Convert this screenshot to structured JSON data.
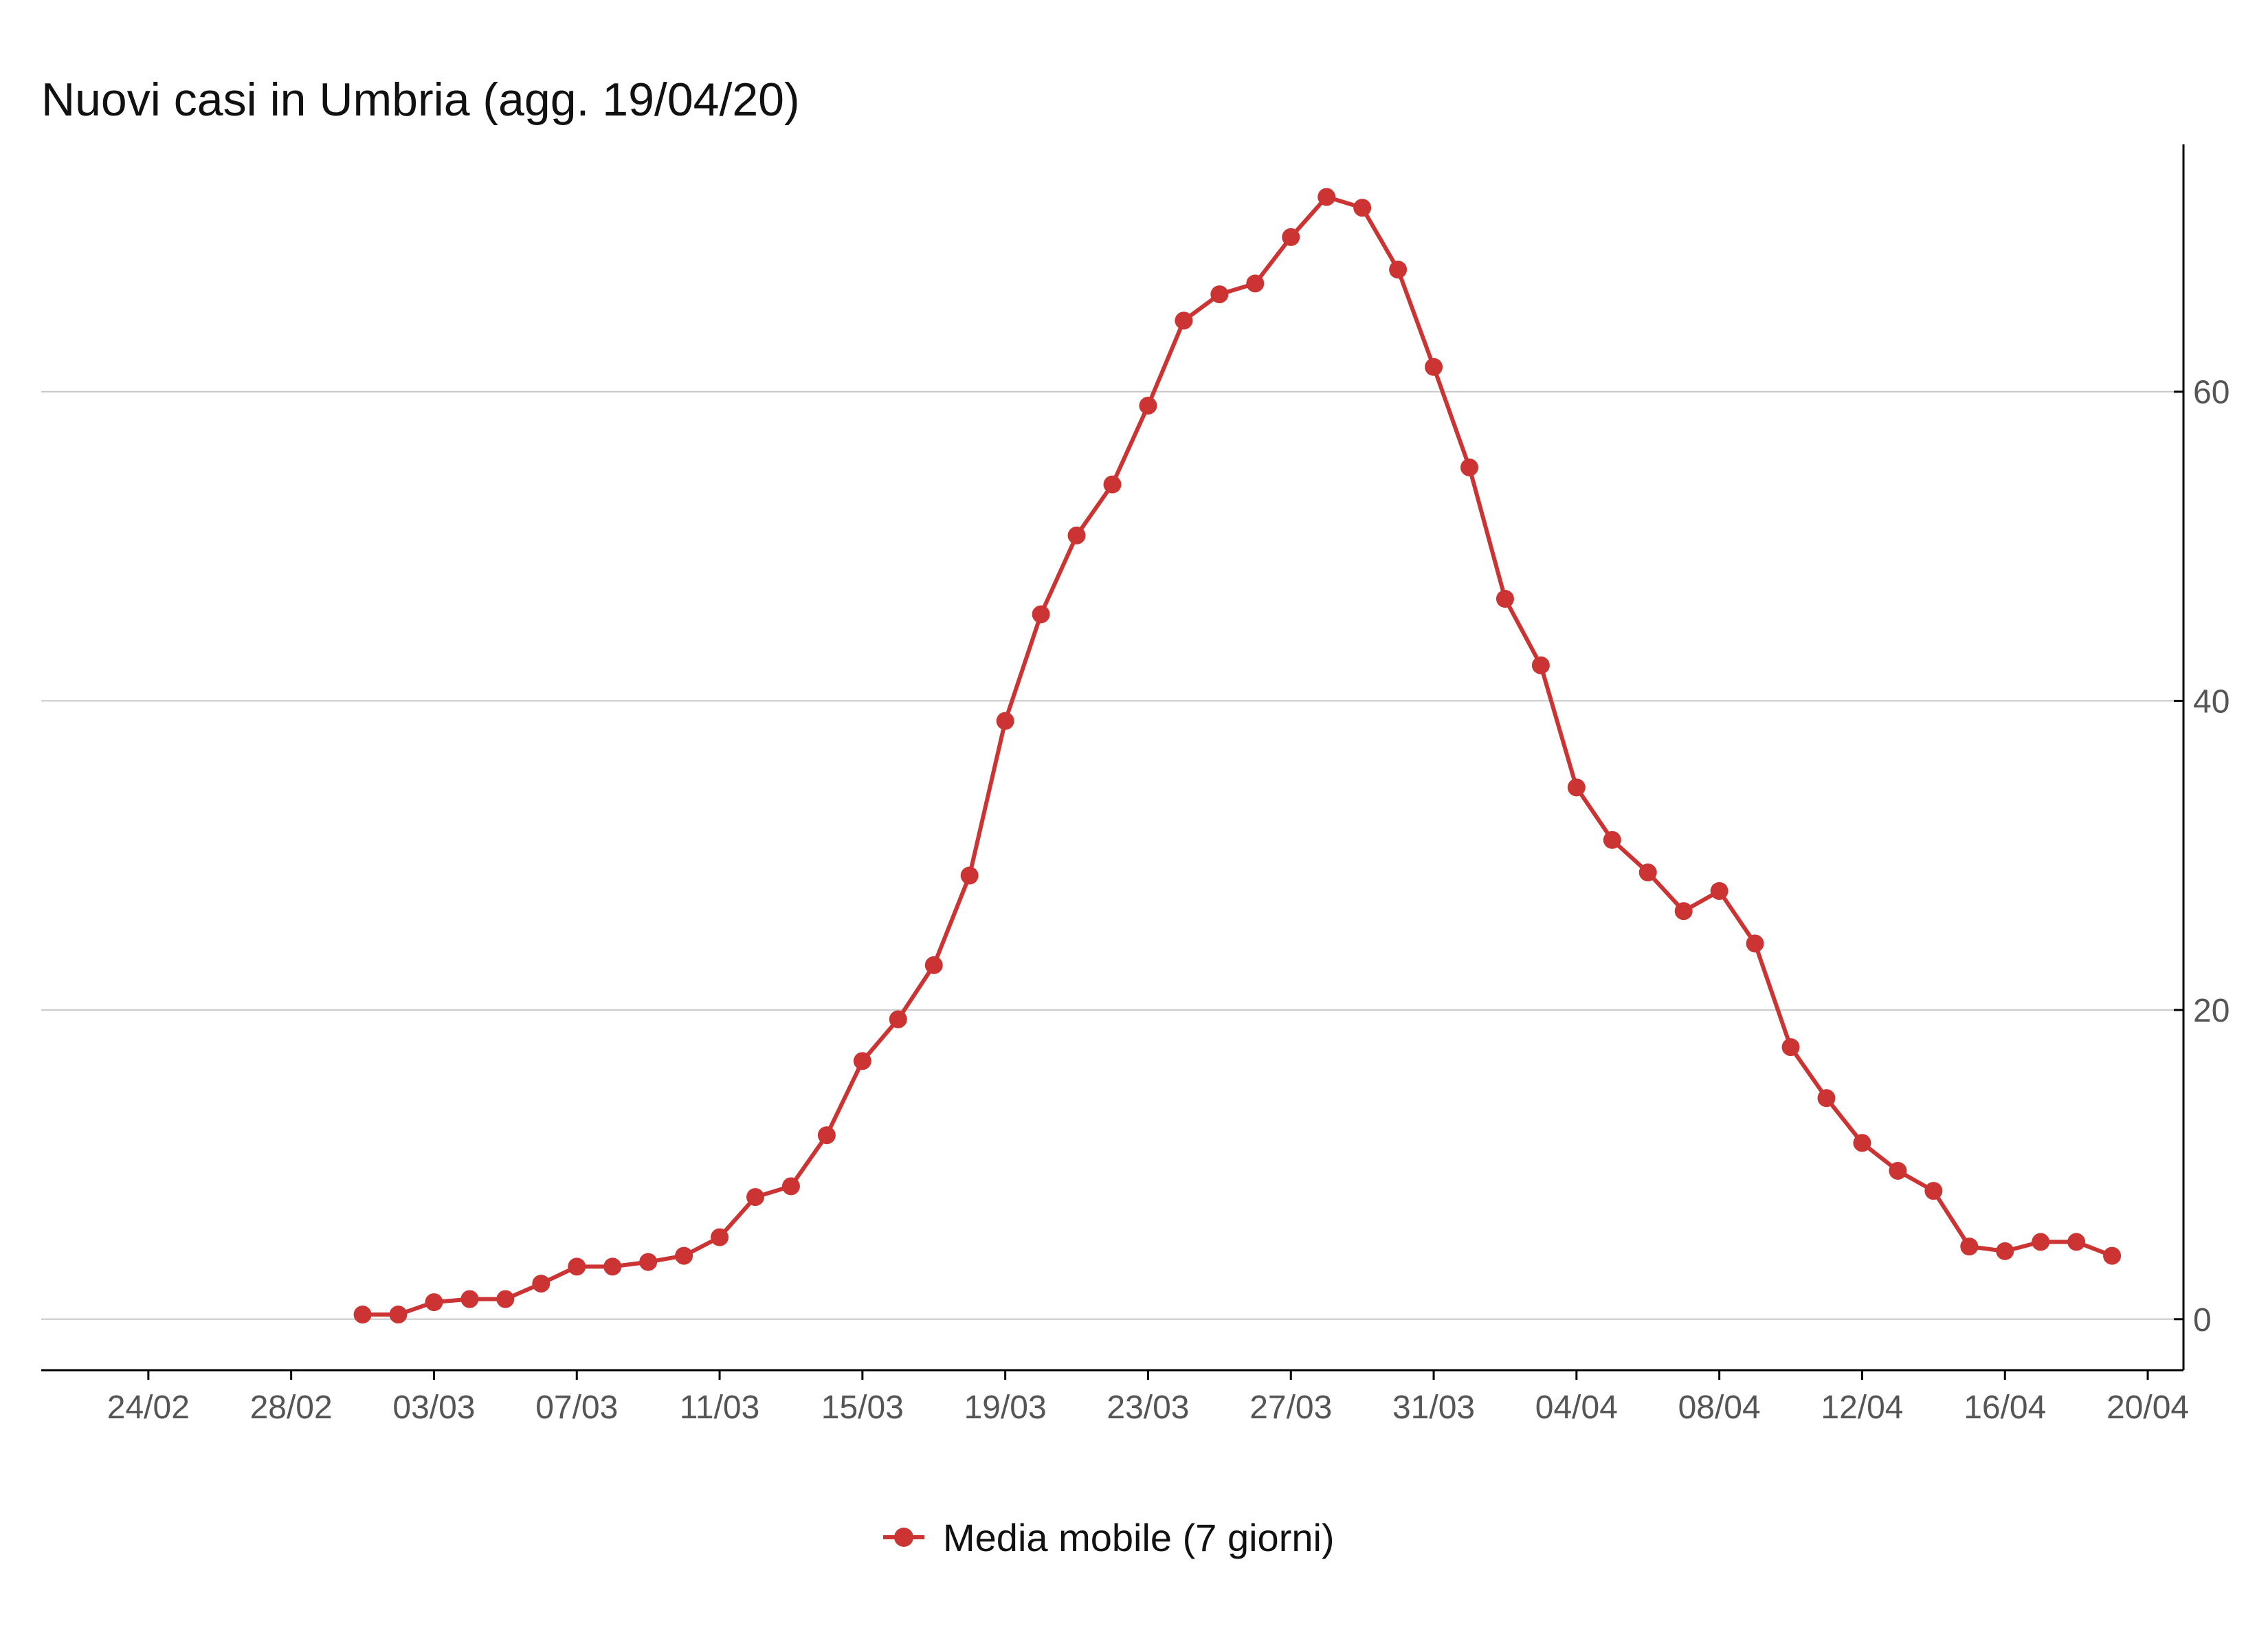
{
  "chart_data": {
    "type": "line",
    "title": "Nuovi casi in Umbria (agg. 19/04/20)",
    "xlabel": "",
    "ylabel": "",
    "y_axis_position": "right",
    "ylim": [
      -3.3,
      76
    ],
    "yticks": [
      0,
      20,
      40,
      60
    ],
    "xlim": [
      "2020-02-21",
      "2020-04-21"
    ],
    "xticks": [
      {
        "date": "2020-02-24",
        "label": "24/02"
      },
      {
        "date": "2020-02-28",
        "label": "28/02"
      },
      {
        "date": "2020-03-03",
        "label": "03/03"
      },
      {
        "date": "2020-03-07",
        "label": "07/03"
      },
      {
        "date": "2020-03-11",
        "label": "11/03"
      },
      {
        "date": "2020-03-15",
        "label": "15/03"
      },
      {
        "date": "2020-03-19",
        "label": "19/03"
      },
      {
        "date": "2020-03-23",
        "label": "23/03"
      },
      {
        "date": "2020-03-27",
        "label": "27/03"
      },
      {
        "date": "2020-03-31",
        "label": "31/03"
      },
      {
        "date": "2020-04-04",
        "label": "04/04"
      },
      {
        "date": "2020-04-08",
        "label": "08/04"
      },
      {
        "date": "2020-04-12",
        "label": "12/04"
      },
      {
        "date": "2020-04-16",
        "label": "16/04"
      },
      {
        "date": "2020-04-20",
        "label": "20/04"
      }
    ],
    "grid": "horizontal",
    "legend_position": "bottom-center",
    "series": [
      {
        "name": "Media mobile (7 giorni)",
        "color": "#cc3333",
        "marker": "circle",
        "x": [
          "2020-03-01",
          "2020-03-02",
          "2020-03-03",
          "2020-03-04",
          "2020-03-05",
          "2020-03-06",
          "2020-03-07",
          "2020-03-08",
          "2020-03-09",
          "2020-03-10",
          "2020-03-11",
          "2020-03-12",
          "2020-03-13",
          "2020-03-14",
          "2020-03-15",
          "2020-03-16",
          "2020-03-17",
          "2020-03-18",
          "2020-03-19",
          "2020-03-20",
          "2020-03-21",
          "2020-03-22",
          "2020-03-23",
          "2020-03-24",
          "2020-03-25",
          "2020-03-26",
          "2020-03-27",
          "2020-03-28",
          "2020-03-29",
          "2020-03-30",
          "2020-03-31",
          "2020-04-01",
          "2020-04-02",
          "2020-04-03",
          "2020-04-04",
          "2020-04-05",
          "2020-04-06",
          "2020-04-07",
          "2020-04-08",
          "2020-04-09",
          "2020-04-10",
          "2020-04-11",
          "2020-04-12",
          "2020-04-13",
          "2020-04-14",
          "2020-04-15",
          "2020-04-16",
          "2020-04-17",
          "2020-04-18",
          "2020-04-19"
        ],
        "values": [
          0.3,
          0.3,
          1.1,
          1.3,
          1.3,
          2.3,
          3.4,
          3.4,
          3.7,
          4.1,
          5.3,
          7.9,
          8.6,
          11.9,
          16.7,
          19.4,
          22.9,
          28.7,
          38.7,
          45.6,
          50.7,
          54.0,
          59.1,
          64.6,
          66.3,
          67.0,
          70.0,
          72.6,
          71.9,
          67.9,
          61.6,
          55.1,
          46.6,
          42.3,
          34.4,
          31.0,
          28.9,
          26.4,
          27.7,
          24.3,
          17.6,
          14.3,
          11.4,
          9.6,
          8.3,
          4.7,
          4.4,
          5.0,
          5.0,
          4.1
        ]
      }
    ]
  }
}
